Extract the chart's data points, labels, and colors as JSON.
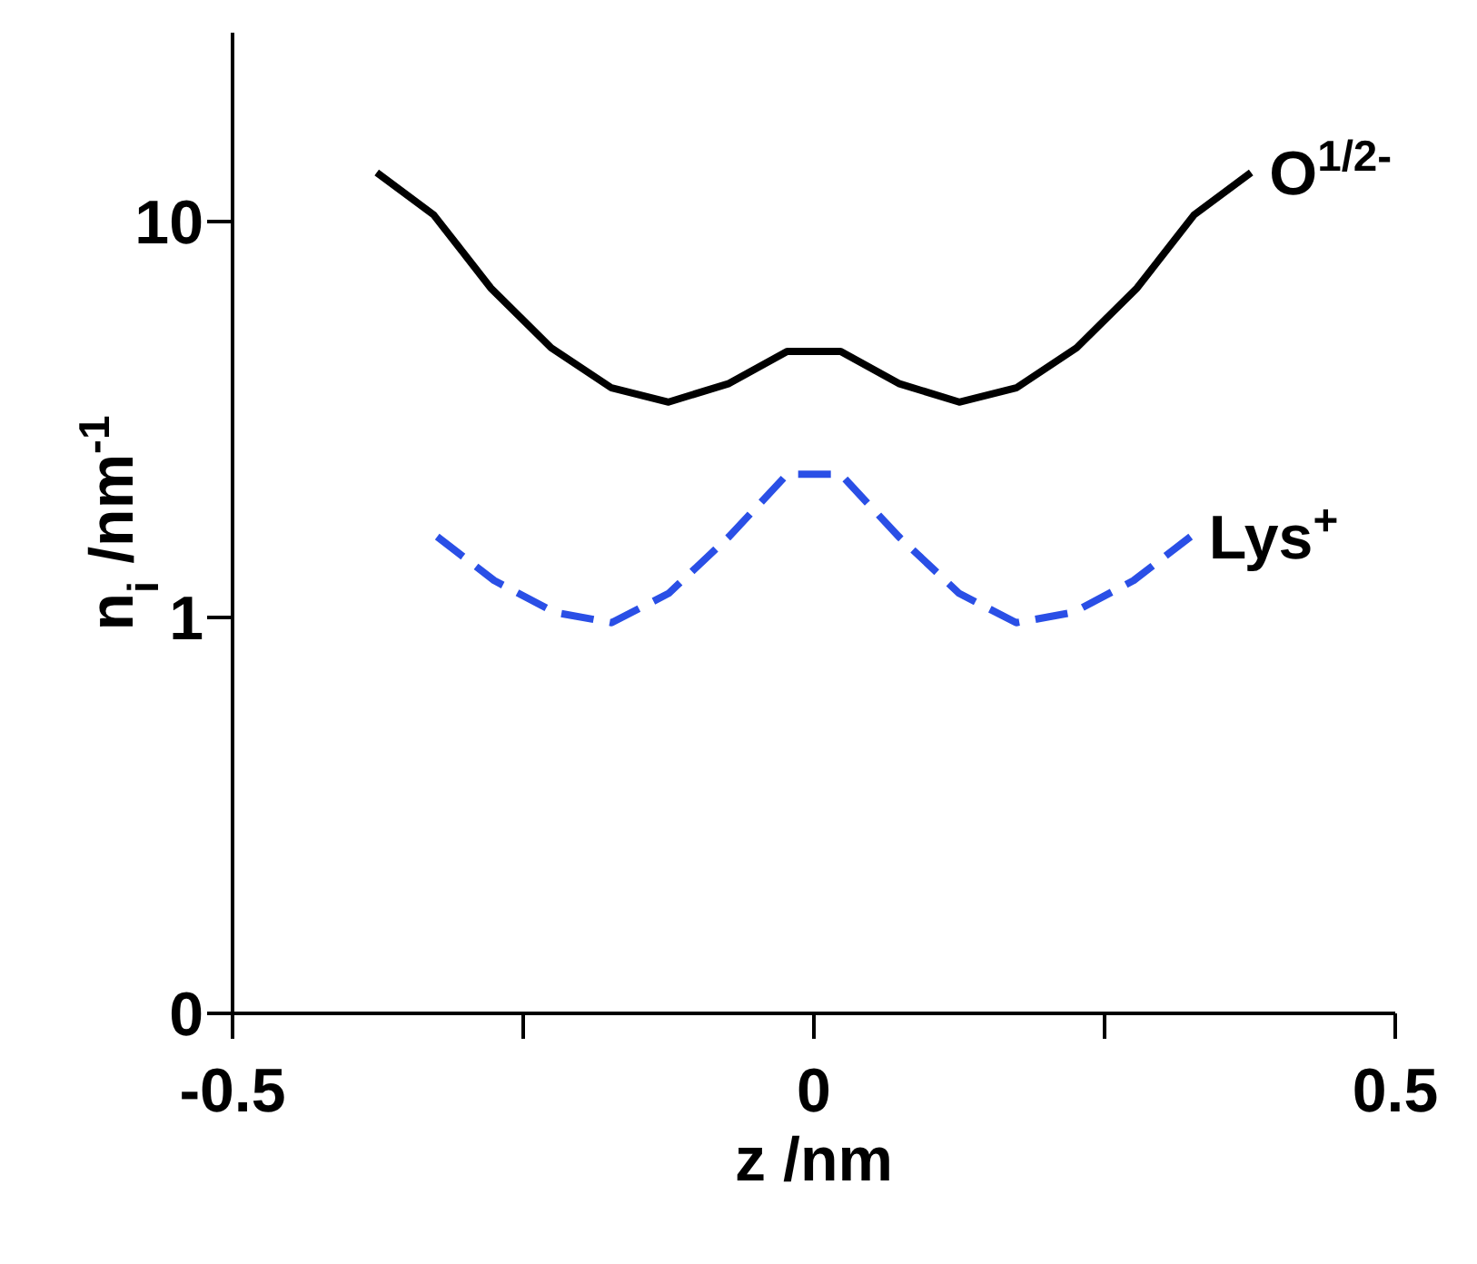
{
  "chart_data": {
    "type": "line",
    "xlabel": "z /nm",
    "ylabel": "n$_{i}$ /nm$^{-1}$",
    "log": "y",
    "grid": false,
    "legend": false,
    "marker": "none",
    "xlim": [
      -0.5,
      0.5
    ],
    "xticks": [
      -0.5,
      {
        "value": -0.25,
        "label": null
      },
      0,
      {
        "value": 0.25,
        "label": null
      },
      0.5
    ],
    "ylim": [
      0.1,
      30
    ],
    "yticks": [
      {
        "value": 0.1,
        "label": "0"
      },
      1,
      10
    ],
    "series": [
      {
        "name": "O$^{1/2-}$",
        "color": "#000000",
        "line_style": "solid",
        "x": [
          -0.376,
          -0.327,
          -0.278,
          -0.226,
          -0.174,
          -0.125,
          -0.073,
          -0.023,
          0.023,
          0.073,
          0.125,
          0.174,
          0.226,
          0.278,
          0.327,
          0.376
        ],
        "values": [
          13.3,
          10.4,
          6.8,
          4.8,
          3.8,
          3.5,
          3.9,
          4.7,
          4.7,
          3.9,
          3.5,
          3.8,
          4.8,
          6.8,
          10.4,
          13.3
        ]
      },
      {
        "name": "Lys$^{+}$",
        "color": "#2a4fe6",
        "line_style": "dashed",
        "x": [
          -0.324,
          -0.275,
          -0.223,
          -0.174,
          -0.125,
          -0.073,
          -0.023,
          0.023,
          0.073,
          0.125,
          0.174,
          0.223,
          0.275,
          0.324
        ],
        "values": [
          1.6,
          1.24,
          1.03,
          0.97,
          1.15,
          1.6,
          2.3,
          2.3,
          1.6,
          1.15,
          0.97,
          1.03,
          1.24,
          1.6
        ]
      }
    ]
  }
}
